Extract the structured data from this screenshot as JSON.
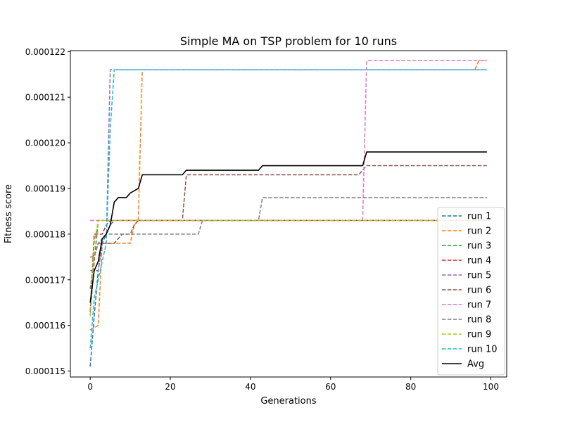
{
  "chart_data": {
    "type": "line",
    "title": "Simple MA on TSP problem for 10 runs",
    "xlabel": "Generations",
    "ylabel": "Fitness score",
    "xlim": [
      -4.95,
      103.95
    ],
    "ylim": [
      0.00011487,
      0.00012202
    ],
    "x_ticks": [
      0,
      20,
      40,
      60,
      80,
      100
    ],
    "y_ticks": [
      0.000115,
      0.000116,
      0.000117,
      0.000118,
      0.000119,
      0.00012,
      0.000121,
      0.000122
    ],
    "y_tick_labels": [
      "0.000115",
      "0.000116",
      "0.000117",
      "0.000118",
      "0.000119",
      "0.000120",
      "0.000121",
      "0.000122"
    ],
    "grid": false,
    "legend_position": "lower-right",
    "series": [
      {
        "name": "run 1",
        "color": "#1f77b4",
        "style": "dashed",
        "points": [
          [
            0,
            0.0001151
          ],
          [
            1,
            0.0001162
          ],
          [
            2,
            0.0001172
          ],
          [
            3,
            0.0001178
          ],
          [
            5,
            0.0001182
          ],
          [
            6,
            0.0001183
          ],
          [
            99,
            0.0001183
          ]
        ]
      },
      {
        "name": "run 2",
        "color": "#ff7f0e",
        "style": "dashed",
        "points": [
          [
            0,
            0.0001159
          ],
          [
            2,
            0.000116
          ],
          [
            3,
            0.0001178
          ],
          [
            7,
            0.0001178
          ],
          [
            8,
            0.0001178
          ],
          [
            10,
            0.0001178
          ],
          [
            11,
            0.0001182
          ],
          [
            12,
            0.0001183
          ],
          [
            13,
            0.0001216
          ],
          [
            96,
            0.0001216
          ],
          [
            97,
            0.0001218
          ],
          [
            99,
            0.0001218
          ]
        ]
      },
      {
        "name": "run 3",
        "color": "#2ca02c",
        "style": "dashed",
        "points": [
          [
            0,
            0.0001162
          ],
          [
            1,
            0.0001174
          ],
          [
            2,
            0.0001183
          ],
          [
            99,
            0.0001183
          ]
        ]
      },
      {
        "name": "run 4",
        "color": "#d62728",
        "style": "dashed",
        "points": [
          [
            0,
            0.0001163
          ],
          [
            1,
            0.000118
          ],
          [
            3,
            0.000118
          ],
          [
            4,
            0.0001182
          ],
          [
            5,
            0.0001183
          ],
          [
            99,
            0.0001183
          ]
        ]
      },
      {
        "name": "run 5",
        "color": "#9467bd",
        "style": "dashed",
        "points": [
          [
            0,
            0.0001172
          ],
          [
            2,
            0.0001172
          ],
          [
            3,
            0.0001178
          ],
          [
            4,
            0.0001178
          ],
          [
            5,
            0.0001216
          ],
          [
            99,
            0.0001216
          ]
        ]
      },
      {
        "name": "run 6",
        "color": "#8c564b",
        "style": "dashed",
        "points": [
          [
            0,
            0.0001175
          ],
          [
            1,
            0.0001175
          ],
          [
            2,
            0.0001178
          ],
          [
            6,
            0.0001178
          ],
          [
            8,
            0.000118
          ],
          [
            10,
            0.000118
          ],
          [
            11,
            0.0001182
          ],
          [
            12,
            0.0001183
          ],
          [
            22,
            0.0001183
          ],
          [
            23,
            0.0001183
          ],
          [
            24,
            0.0001193
          ],
          [
            67,
            0.0001193
          ],
          [
            69,
            0.0001195
          ],
          [
            99,
            0.0001195
          ]
        ]
      },
      {
        "name": "run 7",
        "color": "#e377c2",
        "style": "dashed",
        "points": [
          [
            0,
            0.0001183
          ],
          [
            68,
            0.0001183
          ],
          [
            69,
            0.0001218
          ],
          [
            99,
            0.0001218
          ]
        ]
      },
      {
        "name": "run 8",
        "color": "#7f7f7f",
        "style": "dashed",
        "points": [
          [
            0,
            0.0001168
          ],
          [
            1,
            0.0001175
          ],
          [
            2,
            0.0001178
          ],
          [
            4,
            0.000118
          ],
          [
            27,
            0.000118
          ],
          [
            28,
            0.0001183
          ],
          [
            42,
            0.0001183
          ],
          [
            43,
            0.0001188
          ],
          [
            99,
            0.0001188
          ]
        ]
      },
      {
        "name": "run 9",
        "color": "#bcbd22",
        "style": "dashed",
        "points": [
          [
            0,
            0.0001162
          ],
          [
            1,
            0.0001178
          ],
          [
            2,
            0.0001183
          ],
          [
            99,
            0.0001183
          ]
        ]
      },
      {
        "name": "run 10",
        "color": "#17becf",
        "style": "dashed",
        "points": [
          [
            0,
            0.0001155
          ],
          [
            1,
            0.0001166
          ],
          [
            3,
            0.0001174
          ],
          [
            4,
            0.0001178
          ],
          [
            5,
            0.0001203
          ],
          [
            6,
            0.0001216
          ],
          [
            99,
            0.0001216
          ]
        ]
      },
      {
        "name": "Avg",
        "color": "#000000",
        "style": "solid",
        "points": [
          [
            0,
            0.0001165
          ],
          [
            1,
            0.0001172
          ],
          [
            2,
            0.0001174
          ],
          [
            3,
            0.0001179
          ],
          [
            4,
            0.000118
          ],
          [
            5,
            0.0001182
          ],
          [
            6,
            0.0001187
          ],
          [
            7,
            0.0001188
          ],
          [
            9,
            0.0001188
          ],
          [
            10,
            0.0001189
          ],
          [
            12,
            0.000119
          ],
          [
            13,
            0.0001193
          ],
          [
            22,
            0.0001193
          ],
          [
            23,
            0.0001193
          ],
          [
            24,
            0.0001194
          ],
          [
            27,
            0.0001194
          ],
          [
            28,
            0.0001194
          ],
          [
            42,
            0.0001194
          ],
          [
            43,
            0.0001195
          ],
          [
            67,
            0.0001195
          ],
          [
            68,
            0.0001195
          ],
          [
            69,
            0.0001198
          ],
          [
            96,
            0.0001198
          ],
          [
            97,
            0.0001198
          ],
          [
            99,
            0.0001198
          ]
        ]
      }
    ]
  }
}
